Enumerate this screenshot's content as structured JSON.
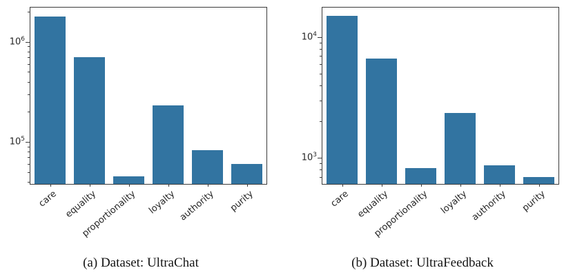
{
  "figure": {
    "background": "#ffffff",
    "bar_color": "#3274a1",
    "axis_color": "#3a3a3a",
    "text_color": "#262626"
  },
  "chart_data": [
    {
      "type": "bar",
      "title": "",
      "xlabel": "",
      "ylabel": "",
      "yscale": "log",
      "grid": false,
      "legend": null,
      "categories": [
        "care",
        "equality",
        "proportionality",
        "loyalty",
        "authority",
        "purity"
      ],
      "values": [
        1800000,
        700000,
        45000,
        230000,
        83000,
        60000
      ],
      "ylim": [
        38000,
        2200000
      ],
      "yticks": [
        {
          "value": 100000,
          "base": "10",
          "exp": "5"
        },
        {
          "value": 1000000,
          "base": "10",
          "exp": "6"
        }
      ],
      "caption": "(a) Dataset: UltraChat"
    },
    {
      "type": "bar",
      "title": "",
      "xlabel": "",
      "ylabel": "",
      "yscale": "log",
      "grid": false,
      "legend": null,
      "categories": [
        "care",
        "equality",
        "proportionality",
        "loyalty",
        "authority",
        "purity"
      ],
      "values": [
        15000,
        6600,
        830,
        2350,
        870,
        700
      ],
      "ylim": [
        610,
        17500
      ],
      "yticks": [
        {
          "value": 1000,
          "base": "10",
          "exp": "3"
        },
        {
          "value": 10000,
          "base": "10",
          "exp": "4"
        }
      ],
      "caption": "(b) Dataset: UltraFeedback"
    }
  ]
}
